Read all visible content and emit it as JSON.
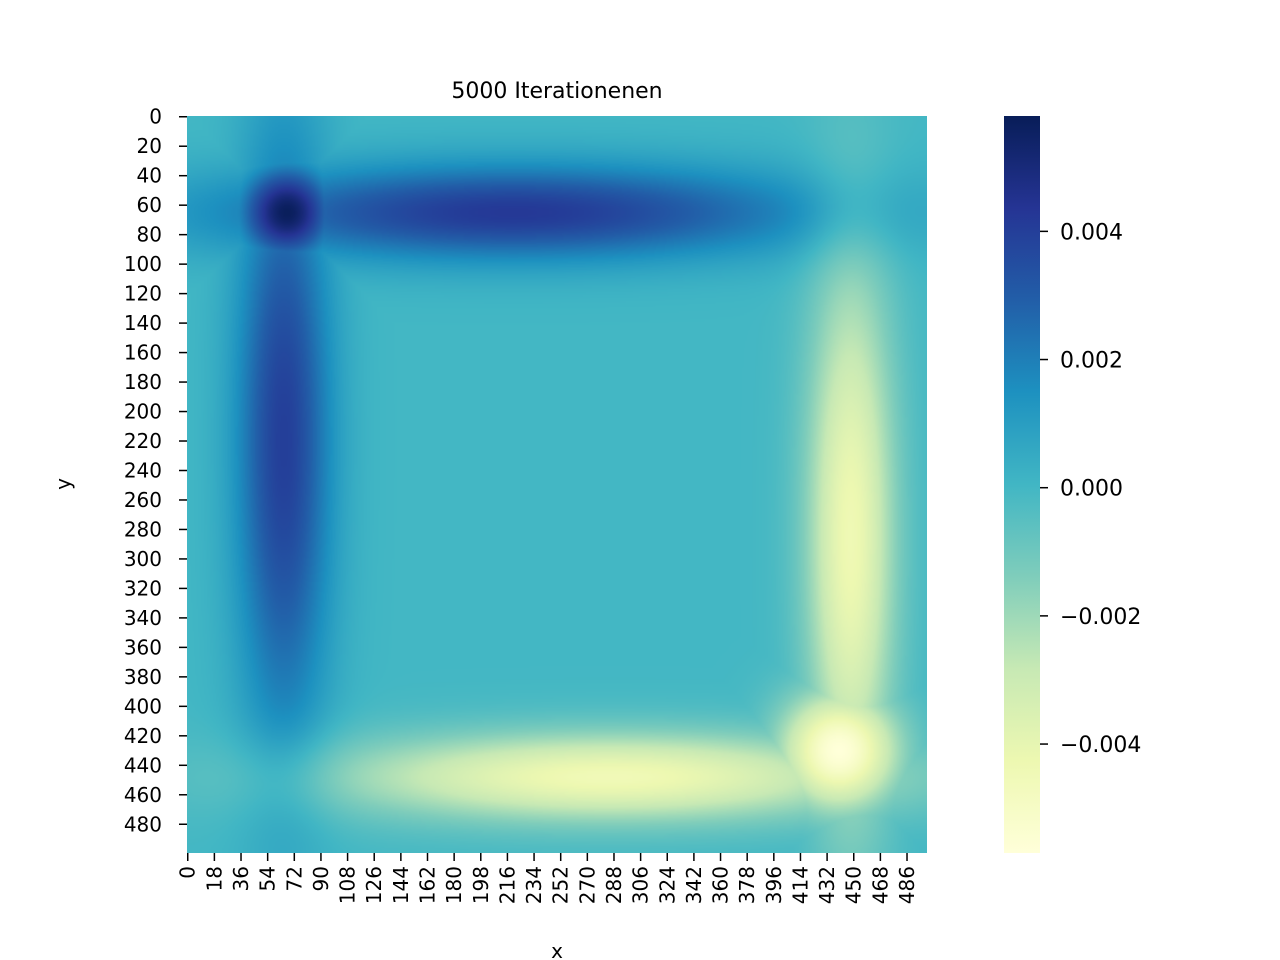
{
  "chart_data": {
    "type": "heatmap",
    "title": "5000 Iterationenen",
    "xlabel": "x",
    "ylabel": "y",
    "colormap": "YlGnBu",
    "colormap_stops": [
      "#ffffd9",
      "#edf8b1",
      "#c7e9b4",
      "#7fcdbb",
      "#41b6c4",
      "#1d91c0",
      "#225ea8",
      "#253494",
      "#081d58"
    ],
    "grid_size": 500,
    "x_ticks": [
      0,
      18,
      36,
      54,
      72,
      90,
      108,
      126,
      144,
      162,
      180,
      198,
      216,
      234,
      252,
      270,
      288,
      306,
      324,
      342,
      360,
      378,
      396,
      414,
      432,
      450,
      468,
      486
    ],
    "y_ticks": [
      0,
      20,
      40,
      60,
      80,
      100,
      120,
      140,
      160,
      180,
      200,
      220,
      240,
      260,
      280,
      300,
      320,
      340,
      360,
      380,
      400,
      420,
      440,
      460,
      480
    ],
    "colorbar": {
      "vmin": -0.0057,
      "vmax": 0.0058,
      "ticks": [
        0.004,
        0.002,
        0.0,
        -0.002,
        -0.004
      ],
      "tick_labels": [
        "0.004",
        "0.002",
        "0.000",
        "−0.002",
        "−0.004"
      ]
    },
    "features": [
      {
        "name": "top band",
        "region": "y 40–90, x 40–400",
        "value": 0.0042
      },
      {
        "name": "left band",
        "region": "x 40–90, y 40–400",
        "value": 0.004
      },
      {
        "name": "top-left peak",
        "x": 67,
        "y": 65,
        "value": 0.0057
      },
      {
        "name": "bottom band",
        "region": "y 420–470, x 100–460",
        "value": -0.0045
      },
      {
        "name": "right band",
        "region": "x 420–470, y 100–460",
        "value": -0.0044
      },
      {
        "name": "bottom-right minimum",
        "x": 440,
        "y": 430,
        "value": -0.0057
      },
      {
        "name": "center and boundary",
        "value": 0.0
      }
    ]
  }
}
